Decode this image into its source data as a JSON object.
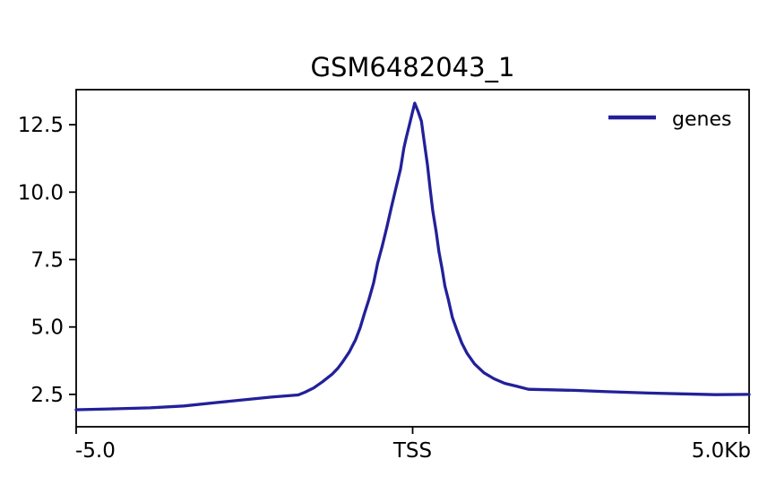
{
  "chart_data": {
    "type": "line",
    "title": "GSM6482043_1",
    "xlabel": "",
    "ylabel": "",
    "xlim": [
      -5.0,
      5.0
    ],
    "ylim": [
      1.3,
      13.8
    ],
    "x_unit": "Kb",
    "grid": false,
    "legend": {
      "position": "upper right",
      "entries": [
        "genes"
      ]
    },
    "xticks": {
      "values": [
        -5.0,
        0.0,
        5.0
      ],
      "labels": [
        "-5.0",
        "TSS",
        "5.0Kb"
      ]
    },
    "yticks": {
      "values": [
        2.5,
        5.0,
        7.5,
        10.0,
        12.5
      ],
      "labels": [
        "2.5",
        "5.0",
        "7.5",
        "10.0",
        "12.5"
      ]
    },
    "series": [
      {
        "name": "genes",
        "color": "#23209a",
        "x": [
          -5.0,
          -4.5,
          -3.9,
          -3.4,
          -2.9,
          -2.3,
          -2.1,
          -1.7,
          -1.6,
          -1.47,
          -1.34,
          -1.2,
          -1.11,
          -1.03,
          -0.94,
          -0.85,
          -0.78,
          -0.72,
          -0.65,
          -0.58,
          -0.52,
          -0.45,
          -0.38,
          -0.32,
          -0.25,
          -0.18,
          -0.13,
          -0.1,
          -0.05,
          0.03,
          0.08,
          0.13,
          0.17,
          0.22,
          0.26,
          0.3,
          0.35,
          0.39,
          0.44,
          0.48,
          0.53,
          0.59,
          0.66,
          0.73,
          0.81,
          0.92,
          1.06,
          1.21,
          1.37,
          1.55,
          1.72,
          2.4,
          2.9,
          3.5,
          4.0,
          4.5,
          5.0
        ],
        "y": [
          1.93,
          1.96,
          2.0,
          2.07,
          2.2,
          2.35,
          2.4,
          2.48,
          2.58,
          2.74,
          2.97,
          3.24,
          3.47,
          3.74,
          4.08,
          4.52,
          4.97,
          5.47,
          6.02,
          6.63,
          7.36,
          8.02,
          8.74,
          9.4,
          10.13,
          10.86,
          11.63,
          11.97,
          12.47,
          13.3,
          13.0,
          12.63,
          11.9,
          11.02,
          10.13,
          9.3,
          8.52,
          7.8,
          7.13,
          6.52,
          6.02,
          5.36,
          4.86,
          4.41,
          4.02,
          3.63,
          3.3,
          3.08,
          2.91,
          2.8,
          2.69,
          2.65,
          2.6,
          2.55,
          2.52,
          2.49,
          2.5
        ]
      }
    ]
  },
  "colors": {
    "line": "#23209a",
    "axis": "#000000",
    "text": "#000000",
    "background": "#ffffff"
  }
}
